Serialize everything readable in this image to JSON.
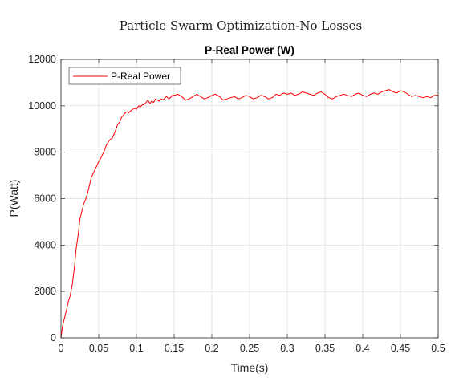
{
  "figure": {
    "suptitle": "Particle Swarm Optimization-No Losses"
  },
  "chart_data": {
    "type": "line",
    "title": "P-Real Power (W)",
    "xlabel": "Time(s)",
    "ylabel": "P(Watt)",
    "xlim": [
      0,
      0.5
    ],
    "ylim": [
      0,
      12000
    ],
    "xticks": [
      0,
      0.05,
      0.1,
      0.15,
      0.2,
      0.25,
      0.3,
      0.35,
      0.4,
      0.45,
      0.5
    ],
    "xtick_labels": [
      "0",
      "0.05",
      "0.1",
      "0.15",
      "0.2",
      "0.25",
      "0.3",
      "0.35",
      "0.4",
      "0.45",
      "0.5"
    ],
    "yticks": [
      0,
      2000,
      4000,
      6000,
      8000,
      10000,
      12000
    ],
    "ytick_labels": [
      "0",
      "2000",
      "4000",
      "6000",
      "8000",
      "10000",
      "12000"
    ],
    "grid": true,
    "legend_position": "top-left",
    "series": [
      {
        "name": "P-Real Power",
        "color": "#ff0000",
        "x": [
          0,
          0.002,
          0.005,
          0.008,
          0.01,
          0.012,
          0.015,
          0.018,
          0.02,
          0.023,
          0.025,
          0.028,
          0.03,
          0.033,
          0.035,
          0.038,
          0.04,
          0.043,
          0.045,
          0.048,
          0.05,
          0.053,
          0.055,
          0.058,
          0.06,
          0.063,
          0.065,
          0.068,
          0.07,
          0.073,
          0.075,
          0.078,
          0.08,
          0.083,
          0.085,
          0.088,
          0.09,
          0.093,
          0.095,
          0.098,
          0.1,
          0.103,
          0.105,
          0.108,
          0.11,
          0.113,
          0.115,
          0.118,
          0.12,
          0.123,
          0.125,
          0.128,
          0.13,
          0.133,
          0.135,
          0.138,
          0.14,
          0.143,
          0.145,
          0.148,
          0.15,
          0.155,
          0.16,
          0.165,
          0.17,
          0.175,
          0.18,
          0.185,
          0.19,
          0.195,
          0.2,
          0.205,
          0.21,
          0.215,
          0.22,
          0.225,
          0.23,
          0.235,
          0.24,
          0.245,
          0.25,
          0.255,
          0.26,
          0.265,
          0.27,
          0.275,
          0.28,
          0.285,
          0.29,
          0.295,
          0.3,
          0.305,
          0.31,
          0.315,
          0.32,
          0.325,
          0.33,
          0.335,
          0.34,
          0.345,
          0.35,
          0.355,
          0.36,
          0.365,
          0.37,
          0.375,
          0.38,
          0.385,
          0.39,
          0.395,
          0.4,
          0.405,
          0.41,
          0.415,
          0.42,
          0.425,
          0.43,
          0.435,
          0.44,
          0.445,
          0.45,
          0.455,
          0.46,
          0.465,
          0.47,
          0.475,
          0.48,
          0.485,
          0.49,
          0.495,
          0.5
        ],
        "y": [
          0,
          500,
          900,
          1300,
          1600,
          1800,
          2300,
          3100,
          3800,
          4500,
          5100,
          5500,
          5750,
          6000,
          6200,
          6600,
          6900,
          7100,
          7250,
          7450,
          7600,
          7750,
          7900,
          8100,
          8300,
          8450,
          8550,
          8600,
          8750,
          9000,
          9200,
          9300,
          9500,
          9600,
          9700,
          9750,
          9700,
          9800,
          9850,
          9900,
          9850,
          10000,
          9950,
          10050,
          10050,
          10150,
          10250,
          10100,
          10200,
          10150,
          10300,
          10250,
          10200,
          10300,
          10250,
          10350,
          10400,
          10300,
          10350,
          10450,
          10450,
          10500,
          10400,
          10250,
          10300,
          10400,
          10500,
          10400,
          10300,
          10350,
          10450,
          10500,
          10400,
          10250,
          10300,
          10350,
          10400,
          10300,
          10350,
          10450,
          10400,
          10300,
          10350,
          10450,
          10400,
          10300,
          10350,
          10500,
          10450,
          10550,
          10500,
          10550,
          10450,
          10500,
          10600,
          10550,
          10500,
          10450,
          10550,
          10600,
          10500,
          10350,
          10300,
          10400,
          10450,
          10500,
          10450,
          10400,
          10500,
          10550,
          10450,
          10400,
          10500,
          10550,
          10500,
          10600,
          10650,
          10700,
          10600,
          10550,
          10650,
          10600,
          10500,
          10400,
          10450,
          10400,
          10350,
          10400,
          10350,
          10450,
          10450
        ]
      }
    ]
  }
}
